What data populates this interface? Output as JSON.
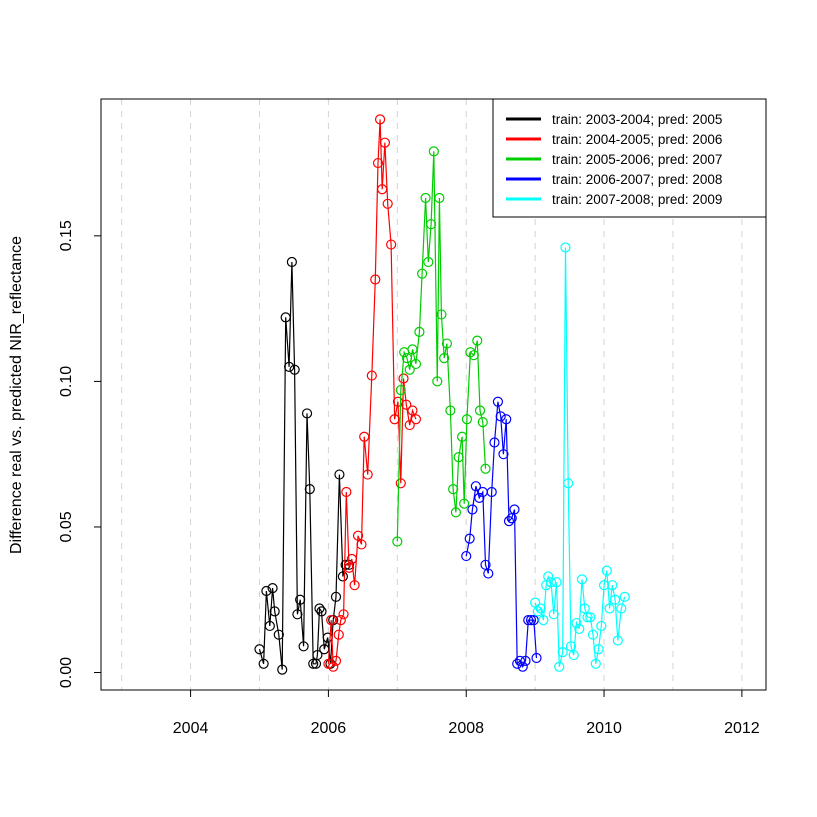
{
  "chart_data": {
    "type": "scatter",
    "title": "",
    "xlabel": "",
    "ylabel": "Difference real vs. predicted NIR_reflectance",
    "xlim": [
      2002.7,
      2012.35
    ],
    "ylim": [
      -0.006,
      0.197
    ],
    "x_ticks": [
      2004,
      2006,
      2008,
      2010,
      2012
    ],
    "x_tick_labels": [
      "2004",
      "2006",
      "2008",
      "2010",
      "2012"
    ],
    "y_ticks": [
      0.0,
      0.05,
      0.1,
      0.15
    ],
    "y_tick_labels": [
      "0.00",
      "0.05",
      "0.10",
      "0.15"
    ],
    "grid": "vertical dashed lines at each year",
    "legend_position": "top-right",
    "markers": "open circles connected by lines",
    "series": [
      {
        "name": "train: 2003-2004; pred: 2005",
        "color": "#000000",
        "x": [
          2005.0,
          2005.06,
          2005.1,
          2005.15,
          2005.19,
          2005.22,
          2005.28,
          2005.33,
          2005.38,
          2005.43,
          2005.47,
          2005.51,
          2005.55,
          2005.59,
          2005.64,
          2005.69,
          2005.73,
          2005.78,
          2005.82,
          2005.84,
          2005.87,
          2005.9,
          2005.94,
          2005.99,
          2006.03,
          2006.07,
          2006.11,
          2006.16,
          2006.21,
          2006.25,
          2006.3
        ],
        "y": [
          0.008,
          0.003,
          0.028,
          0.016,
          0.029,
          0.021,
          0.013,
          0.001,
          0.122,
          0.105,
          0.141,
          0.104,
          0.02,
          0.025,
          0.009,
          0.089,
          0.063,
          0.003,
          0.003,
          0.006,
          0.022,
          0.021,
          0.008,
          0.012,
          0.003,
          0.018,
          0.026,
          0.068,
          0.033,
          0.037,
          0.037
        ]
      },
      {
        "name": "train: 2004-2005; pred: 2006",
        "color": "#ff0000",
        "x": [
          2006.0,
          2006.04,
          2006.07,
          2006.11,
          2006.15,
          2006.18,
          2006.22,
          2006.26,
          2006.3,
          2006.34,
          2006.38,
          2006.43,
          2006.48,
          2006.52,
          2006.57,
          2006.63,
          2006.68,
          2006.72,
          2006.75,
          2006.78,
          2006.82,
          2006.86,
          2006.91,
          2006.96,
          2007.01,
          2007.05,
          2007.09,
          2007.13,
          2007.18,
          2007.22,
          2007.27
        ],
        "y": [
          0.003,
          0.018,
          0.002,
          0.004,
          0.013,
          0.018,
          0.02,
          0.062,
          0.036,
          0.039,
          0.03,
          0.047,
          0.044,
          0.081,
          0.068,
          0.102,
          0.135,
          0.175,
          0.19,
          0.166,
          0.182,
          0.161,
          0.147,
          0.087,
          0.093,
          0.065,
          0.101,
          0.092,
          0.085,
          0.09,
          0.087
        ]
      },
      {
        "name": "train: 2005-2006; pred: 2007",
        "color": "#00cd00",
        "x": [
          2007.0,
          2007.05,
          2007.1,
          2007.14,
          2007.18,
          2007.22,
          2007.27,
          2007.32,
          2007.36,
          2007.41,
          2007.45,
          2007.49,
          2007.53,
          2007.58,
          2007.61,
          2007.64,
          2007.68,
          2007.72,
          2007.77,
          2007.81,
          2007.85,
          2007.89,
          2007.94,
          2007.97,
          2008.01,
          2008.06,
          2008.11,
          2008.16,
          2008.2,
          2008.24,
          2008.28
        ],
        "y": [
          0.045,
          0.097,
          0.11,
          0.108,
          0.104,
          0.111,
          0.106,
          0.117,
          0.137,
          0.163,
          0.141,
          0.154,
          0.179,
          0.1,
          0.163,
          0.123,
          0.108,
          0.113,
          0.09,
          0.063,
          0.055,
          0.074,
          0.081,
          0.058,
          0.087,
          0.11,
          0.109,
          0.114,
          0.09,
          0.086,
          0.07
        ]
      },
      {
        "name": "train: 2006-2007; pred: 2008",
        "color": "#0000ff",
        "x": [
          2008.0,
          2008.05,
          2008.09,
          2008.14,
          2008.19,
          2008.24,
          2008.28,
          2008.32,
          2008.37,
          2008.41,
          2008.46,
          2008.5,
          2008.54,
          2008.58,
          2008.62,
          2008.66,
          2008.7,
          2008.74,
          2008.78,
          2008.82,
          2008.86,
          2008.9,
          2008.94,
          2008.98,
          2009.02
        ],
        "y": [
          0.04,
          0.046,
          0.056,
          0.064,
          0.06,
          0.062,
          0.037,
          0.034,
          0.062,
          0.079,
          0.093,
          0.088,
          0.075,
          0.087,
          0.052,
          0.053,
          0.056,
          0.003,
          0.004,
          0.002,
          0.004,
          0.018,
          0.018,
          0.018,
          0.005
        ]
      },
      {
        "name": "train: 2007-2008; pred: 2009",
        "color": "#00ffff",
        "x": [
          2009.0,
          2009.04,
          2009.08,
          2009.12,
          2009.16,
          2009.19,
          2009.23,
          2009.27,
          2009.31,
          2009.35,
          2009.4,
          2009.44,
          2009.48,
          2009.52,
          2009.56,
          2009.6,
          2009.64,
          2009.68,
          2009.72,
          2009.76,
          2009.8,
          2009.84,
          2009.88,
          2009.92,
          2009.96,
          2010.0,
          2010.04,
          2010.08,
          2010.12,
          2010.16,
          2010.2,
          2010.25,
          2010.3
        ],
        "y": [
          0.024,
          0.021,
          0.022,
          0.018,
          0.03,
          0.033,
          0.031,
          0.02,
          0.031,
          0.002,
          0.007,
          0.146,
          0.065,
          0.009,
          0.006,
          0.017,
          0.015,
          0.032,
          0.022,
          0.019,
          0.019,
          0.013,
          0.003,
          0.008,
          0.016,
          0.03,
          0.035,
          0.022,
          0.03,
          0.025,
          0.011,
          0.022,
          0.026
        ]
      }
    ]
  }
}
